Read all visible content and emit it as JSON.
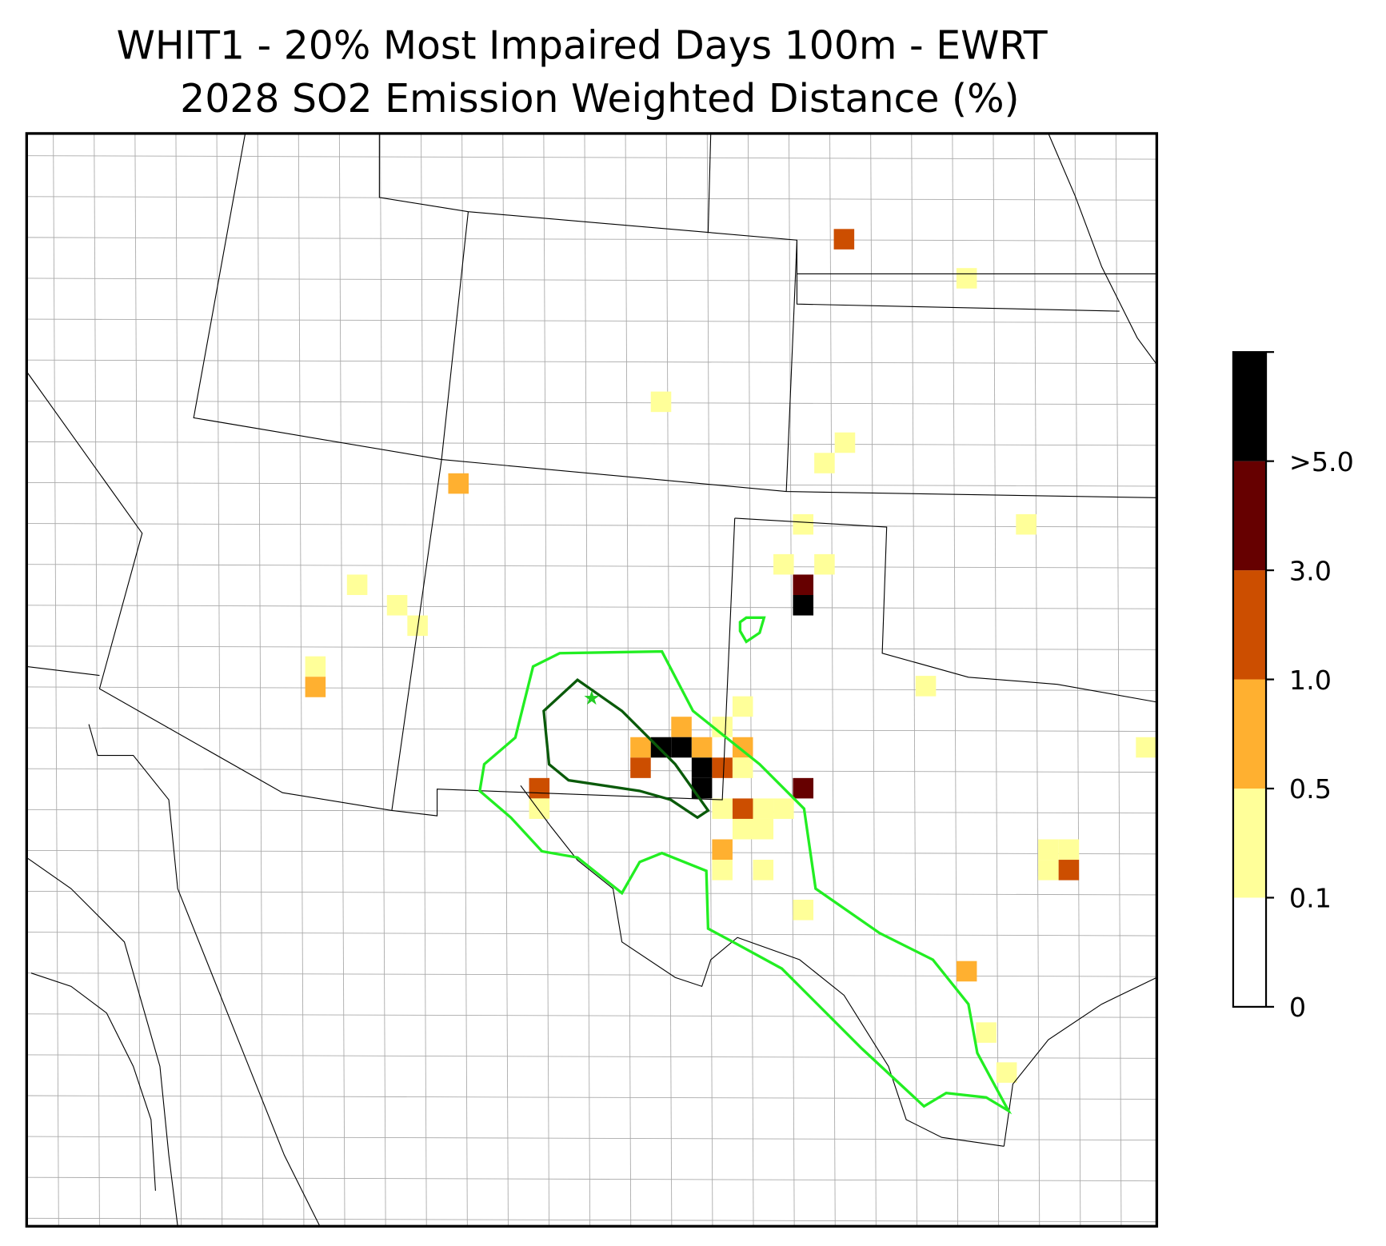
{
  "chart_data": {
    "type": "map",
    "title": [
      "WHIT1 - 20% Most Impaired Days 100m - EWRT",
      "2028 SO2 Emission Weighted Distance (%)"
    ],
    "colorbar": {
      "colors": [
        "#ffffff",
        "#ffff99",
        "#ffb030",
        "#cc4e00",
        "#660000",
        "#000000"
      ],
      "ticks": [
        0,
        0.1,
        0.5,
        {
          "value": 1,
          "label": "1.0"
        },
        {
          "value": 3,
          "label": "3.0"
        },
        {
          "value": 5,
          "label": ">5.0"
        }
      ]
    }
  }
}
